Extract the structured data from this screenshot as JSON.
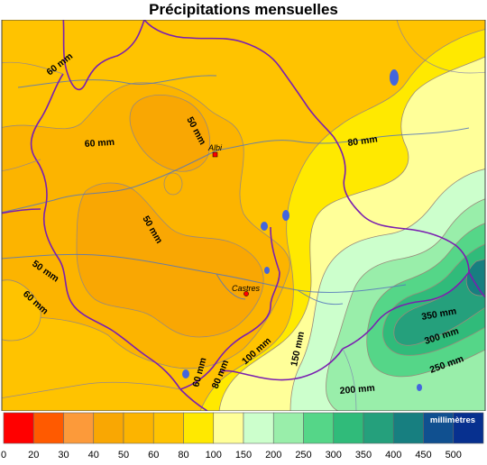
{
  "title": "Précipitations mensuelles",
  "colors": {
    "band_40_50": "#f9a703",
    "band_50_60": "#fcb400",
    "band_60_80": "#ffc300",
    "band_80_100": "#ffe900",
    "band_100_150": "#ffff99",
    "band_150_200": "#ccffcc",
    "band_200_250": "#99eeaa",
    "band_250_300": "#55d688",
    "band_300_350": "#30bb7a",
    "band_350_400": "#25a07c",
    "border": "#7a1fb0",
    "river": "#5577bb",
    "lake": "#4466dd",
    "city": "#ff0000"
  },
  "contour_labels": [
    {
      "id": "60-mm-nw",
      "text": "60 mm"
    },
    {
      "id": "60-mm-north",
      "text": "60 mm"
    },
    {
      "id": "50-mm-albi",
      "text": "50 mm"
    },
    {
      "id": "50-mm-center",
      "text": "50 mm"
    },
    {
      "id": "50-mm-west",
      "text": "50 mm"
    },
    {
      "id": "60-mm-west",
      "text": "60 mm"
    },
    {
      "id": "80-mm-ne",
      "text": "80 mm"
    },
    {
      "id": "60-mm-south",
      "text": "60 mm"
    },
    {
      "id": "80-mm-south",
      "text": "80 mm"
    },
    {
      "id": "100-mm",
      "text": "100 mm"
    },
    {
      "id": "150-mm",
      "text": "150 mm"
    },
    {
      "id": "200-mm",
      "text": "200 mm"
    },
    {
      "id": "250-mm",
      "text": "250 mm"
    },
    {
      "id": "300-mm",
      "text": "300 mm"
    },
    {
      "id": "350-mm",
      "text": "350 mm"
    }
  ],
  "cities": [
    {
      "id": "albi",
      "name": "Albi",
      "marker": "square"
    },
    {
      "id": "castres",
      "name": "Castres",
      "marker": "dot"
    }
  ],
  "legend": {
    "unit": "millimètres",
    "ticks": [
      "0",
      "20",
      "30",
      "40",
      "50",
      "60",
      "80",
      "100",
      "150",
      "200",
      "250",
      "300",
      "350",
      "400",
      "450",
      "500"
    ],
    "swatches": [
      "#ff0000",
      "#ff5a00",
      "#fc9a3a",
      "#f9a703",
      "#fcb400",
      "#ffc300",
      "#ffe900",
      "#ffff99",
      "#ccffcc",
      "#99eeaa",
      "#55d688",
      "#30bb7a",
      "#25a07c",
      "#177f80",
      "#105090",
      "#07308f"
    ]
  }
}
